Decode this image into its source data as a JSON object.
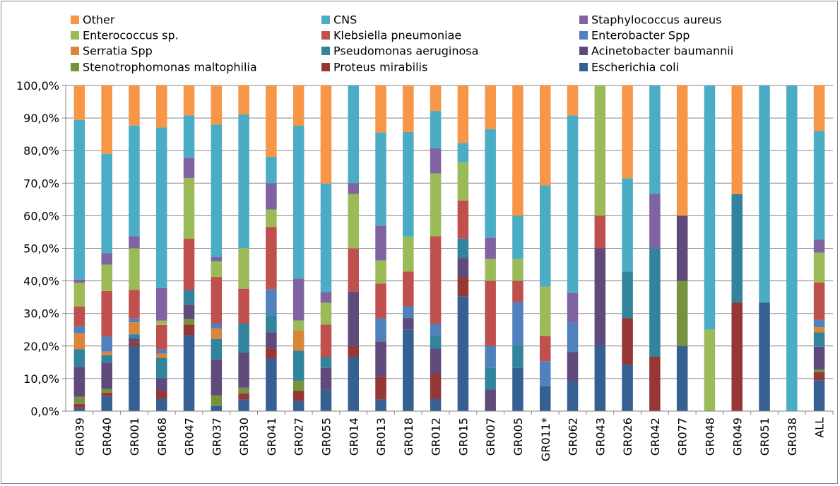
{
  "chart_data": {
    "type": "bar",
    "stacked": true,
    "percent_stacked": true,
    "title": "",
    "xlabel": "",
    "ylabel": "",
    "ylim": [
      0,
      100
    ],
    "y_ticks": [
      "0,0%",
      "10,0%",
      "20,0%",
      "30,0%",
      "40,0%",
      "50,0%",
      "60,0%",
      "70,0%",
      "80,0%",
      "90,0%",
      "100,0%"
    ],
    "legend_position": "top",
    "categories": [
      "GR039",
      "GR040",
      "GR001",
      "GR068",
      "GR047",
      "GR037",
      "GR030",
      "GR041",
      "GR027",
      "GR055",
      "GR014",
      "GR013",
      "GR018",
      "GR012",
      "GR015",
      "GR007",
      "GR005",
      "GR011*",
      "GR062",
      "GR043",
      "GR026",
      "GR042",
      "GR077",
      "GR048",
      "GR049",
      "GR051",
      "GR038",
      "ALL"
    ],
    "legend": [
      {
        "name": "Other",
        "color": "#F79646"
      },
      {
        "name": "CNS",
        "color": "#4BACC6"
      },
      {
        "name": "Staphylococcus aureus",
        "color": "#8064A2"
      },
      {
        "name": "Enterococcus sp.",
        "color": "#9BBB59"
      },
      {
        "name": "Klebsiella pneumoniae",
        "color": "#C0504D"
      },
      {
        "name": "Enterobacter Spp",
        "color": "#4F81BD"
      },
      {
        "name": "Serratia Spp",
        "color": "#D9853B"
      },
      {
        "name": "Pseudomonas aeruginosa",
        "color": "#31849B"
      },
      {
        "name": "Acinetobacter baumannii",
        "color": "#604A7B"
      },
      {
        "name": "Stenotrophomonas maltophilia",
        "color": "#76923C"
      },
      {
        "name": "Proteus mirabilis",
        "color": "#953735"
      },
      {
        "name": "Escherichia coli",
        "color": "#376092"
      }
    ],
    "stack_order": [
      "Escherichia coli",
      "Proteus mirabilis",
      "Stenotrophomonas maltophilia",
      "Acinetobacter baumannii",
      "Pseudomonas aeruginosa",
      "Serratia Spp",
      "Enterobacter Spp",
      "Klebsiella pneumoniae",
      "Enterococcus sp.",
      "Staphylococcus aureus",
      "CNS",
      "Other"
    ],
    "series": [
      {
        "name": "Escherichia coli",
        "values": [
          1.1,
          4.6,
          20.0,
          3.8,
          23.3,
          1.6,
          3.6,
          16.0,
          3.0,
          6.6,
          16.7,
          3.6,
          25.0,
          3.8,
          33.3,
          0,
          13.3,
          7.7,
          9.1,
          20.0,
          14.3,
          0,
          20.0,
          0,
          0,
          33.3,
          0,
          9.5
        ]
      },
      {
        "name": "Proteus mirabilis",
        "values": [
          1.1,
          1.1,
          1.2,
          2.5,
          3.3,
          0,
          1.8,
          3.0,
          3.0,
          0,
          3.3,
          7.1,
          0,
          7.7,
          5.6,
          0,
          0,
          0,
          0,
          0,
          14.3,
          16.7,
          0,
          0,
          33.3,
          0,
          0,
          2.5
        ]
      },
      {
        "name": "Stenotrophomonas maltophilia",
        "values": [
          2.2,
          1.1,
          0,
          0,
          1.7,
          3.2,
          1.8,
          0,
          3.0,
          0,
          0,
          0,
          0,
          0,
          0,
          0,
          0,
          0,
          0,
          0,
          0,
          0,
          20.0,
          0,
          0,
          0,
          0,
          0.8
        ]
      },
      {
        "name": "Acinetobacter baumannii",
        "values": [
          9.2,
          8.1,
          1.2,
          3.8,
          4.4,
          11.1,
          10.7,
          5.0,
          0,
          6.7,
          16.7,
          10.7,
          3.6,
          7.7,
          5.6,
          6.7,
          0,
          0,
          9.1,
          30.0,
          0,
          0,
          20.0,
          0,
          0,
          0,
          0,
          7.0
        ]
      },
      {
        "name": "Pseudomonas aeruginosa",
        "values": [
          5.4,
          2.3,
          1.2,
          6.3,
          4.4,
          6.3,
          9.0,
          5.0,
          9.0,
          3.3,
          0,
          0,
          0,
          3.8,
          5.6,
          6.7,
          6.7,
          0,
          0,
          0,
          14.3,
          33.3,
          0,
          0,
          33.3,
          0,
          0,
          4.4
        ]
      },
      {
        "name": "Serratia Spp",
        "values": [
          4.9,
          1.1,
          3.7,
          1.3,
          0,
          3.2,
          0,
          0,
          6.0,
          0,
          0,
          0,
          0,
          0,
          0,
          0,
          0,
          0,
          0,
          0,
          0,
          0,
          0,
          0,
          0,
          0,
          0,
          1.6
        ]
      },
      {
        "name": "Enterobacter Spp",
        "values": [
          2.2,
          4.6,
          1.2,
          1.2,
          0,
          1.6,
          0,
          8.0,
          0,
          0,
          0,
          7.1,
          3.6,
          3.8,
          0,
          6.6,
          13.4,
          7.7,
          9.0,
          0,
          0,
          0,
          0,
          0,
          0,
          0,
          0,
          2.2
        ]
      },
      {
        "name": "Klebsiella pneumoniae",
        "values": [
          6.0,
          14.0,
          8.7,
          7.6,
          15.9,
          14.2,
          10.7,
          19.0,
          0,
          10.0,
          13.3,
          10.7,
          10.7,
          26.9,
          11.1,
          20.0,
          6.6,
          7.7,
          0,
          10.0,
          0,
          0,
          0,
          0,
          0,
          0,
          0,
          11.5
        ]
      },
      {
        "name": "Enterococcus sp.",
        "values": [
          7.3,
          8.1,
          12.8,
          1.3,
          18.6,
          4.8,
          12.5,
          5.3,
          3.0,
          6.7,
          16.7,
          7.1,
          10.7,
          19.3,
          11.1,
          6.7,
          6.7,
          15.3,
          0,
          40.0,
          0,
          0,
          0,
          25.0,
          0,
          0,
          0,
          9.2
        ]
      },
      {
        "name": "Staphylococcus aureus",
        "values": [
          1.0,
          3.5,
          3.7,
          10.0,
          6.2,
          1.3,
          0,
          8.0,
          12.5,
          3.3,
          3.3,
          10.7,
          0,
          7.7,
          0,
          6.6,
          0,
          0,
          9.1,
          0,
          0,
          16.7,
          0,
          0,
          0,
          0,
          0,
          4.0
        ]
      },
      {
        "name": "CNS",
        "values": [
          49.0,
          30.5,
          34.0,
          49.3,
          13.0,
          40.7,
          41.0,
          8.0,
          45.5,
          33.3,
          30.0,
          28.6,
          32.1,
          11.5,
          5.6,
          33.3,
          13.3,
          31.1,
          54.5,
          0,
          28.6,
          33.3,
          0,
          75.0,
          0,
          66.7,
          100,
          33.3
        ]
      },
      {
        "name": "Other",
        "values": [
          10.6,
          21.0,
          12.3,
          12.9,
          9.2,
          12.0,
          8.9,
          21.7,
          12.0,
          30.1,
          0,
          14.4,
          14.3,
          7.8,
          16.7,
          13.4,
          40.0,
          30.8,
          9.2,
          0,
          28.5,
          0,
          40.0,
          0,
          33.4,
          0,
          0,
          14.0
        ]
      }
    ]
  }
}
